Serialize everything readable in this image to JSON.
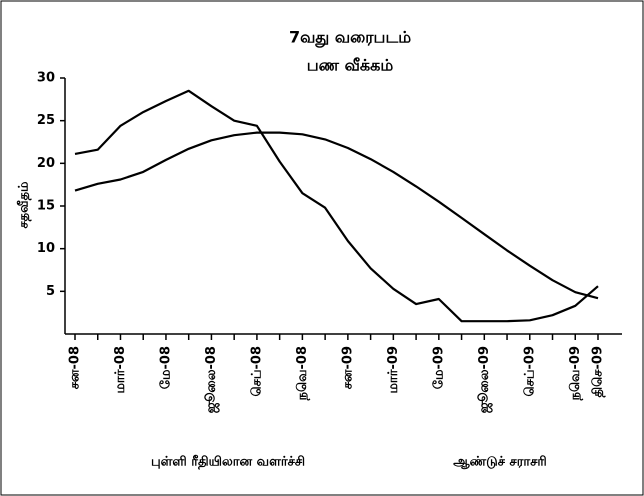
{
  "chart_data": {
    "type": "line",
    "title": "7வது வரைபடம்",
    "subtitle": "பண வீக்கம்",
    "y_label": "சதவீதம்",
    "categories": [
      "சன-08",
      null,
      "மார்-08",
      null,
      "மே-08",
      null,
      "ஜூலை-08",
      null,
      "செப்-08",
      null,
      "நவெ-08",
      null,
      "சன-09",
      null,
      "மார்-09",
      null,
      "மே-09",
      null,
      "ஜூலை-09",
      null,
      "செப்-09",
      null,
      "நவெ-09",
      "திசெ-09"
    ],
    "series": [
      {
        "name": "புள்ளி ரீதியிலான வளர்ச்சி",
        "color": "#000000",
        "values": [
          21.1,
          21.6,
          24.4,
          26,
          27.3,
          28.5,
          26.7,
          25,
          24.4,
          20.2,
          16.5,
          14.8,
          10.9,
          7.7,
          5.3,
          3.5,
          4.1,
          1.5,
          1.5,
          1.5,
          1.6,
          2.2,
          3.3,
          5.6
        ]
      },
      {
        "name": "ஆண்டுச் சராசரி",
        "color": "#000000",
        "values": [
          16.8,
          17.6,
          18.1,
          19,
          20.4,
          21.7,
          22.7,
          23.3,
          23.6,
          23.6,
          23.4,
          22.8,
          21.8,
          20.5,
          19,
          17.3,
          15.5,
          13.6,
          11.7,
          9.8,
          8,
          6.3,
          4.9,
          4.2
        ]
      }
    ],
    "ylim": [
      0,
      30
    ],
    "yticks": [
      5,
      10,
      15,
      20,
      25,
      30
    ]
  }
}
